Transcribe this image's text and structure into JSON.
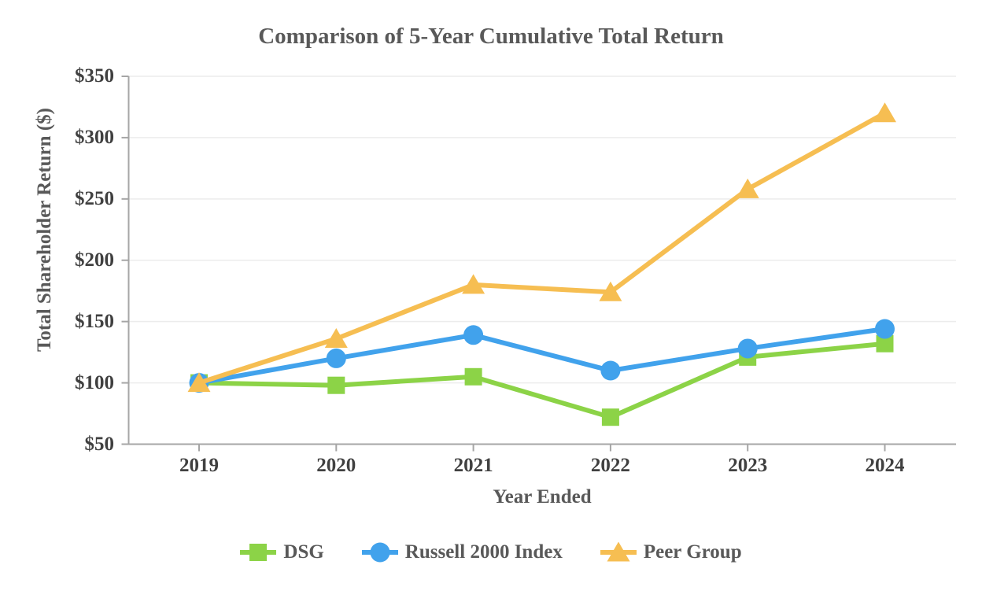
{
  "title": "Comparison of 5-Year Cumulative Total Return",
  "chart_data": {
    "type": "line",
    "title": "Comparison of 5-Year Cumulative Total Return",
    "xlabel": "Year Ended",
    "ylabel": "Total Shareholder Return ($)",
    "categories": [
      "2019",
      "2020",
      "2021",
      "2022",
      "2023",
      "2024"
    ],
    "series": [
      {
        "name": "DSG",
        "marker": "square",
        "color": "#8CD347",
        "values": [
          100,
          98,
          105,
          72,
          121,
          132
        ]
      },
      {
        "name": "Russell 2000 Index",
        "marker": "circle",
        "color": "#41A2EC",
        "values": [
          100,
          120,
          139,
          110,
          128,
          144
        ]
      },
      {
        "name": "Peer Group",
        "marker": "triangle",
        "color": "#F6BE52",
        "values": [
          100,
          136,
          180,
          174,
          258,
          320
        ]
      }
    ],
    "ylim": [
      50,
      350
    ],
    "ytick_step": 50,
    "ytick_labels": [
      "$50",
      "$100",
      "$150",
      "$200",
      "$250",
      "$300",
      "$350"
    ],
    "grid": true,
    "legend_position": "bottom"
  },
  "colors": {
    "gridline": "#ECECEC",
    "axis_line": "#A6A6A6",
    "title_text": "#595959",
    "tick_text": "#404040",
    "dsg_green": "#8CD347",
    "russell_blue": "#41A2EC",
    "peer_yellow": "#F6BE52"
  }
}
